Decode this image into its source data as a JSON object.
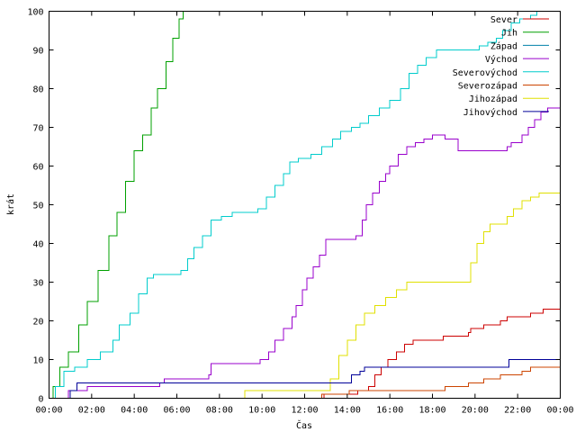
{
  "chart_data": {
    "type": "line",
    "title": "",
    "xlabel": "Čas",
    "ylabel": "krát",
    "xlim": [
      0,
      24
    ],
    "ylim": [
      0,
      100
    ],
    "grid": false,
    "legend_position": "top-right",
    "x_ticks": [
      {
        "value": 0,
        "label": "00:00"
      },
      {
        "value": 2,
        "label": "02:00"
      },
      {
        "value": 4,
        "label": "04:00"
      },
      {
        "value": 6,
        "label": "06:00"
      },
      {
        "value": 8,
        "label": "08:00"
      },
      {
        "value": 10,
        "label": "10:00"
      },
      {
        "value": 12,
        "label": "12:00"
      },
      {
        "value": 14,
        "label": "14:00"
      },
      {
        "value": 16,
        "label": "16:00"
      },
      {
        "value": 18,
        "label": "18:00"
      },
      {
        "value": 20,
        "label": "20:00"
      },
      {
        "value": 22,
        "label": "22:00"
      },
      {
        "value": 24,
        "label": "00:00"
      }
    ],
    "y_ticks": [
      {
        "value": 0,
        "label": "0"
      },
      {
        "value": 10,
        "label": "10"
      },
      {
        "value": 20,
        "label": "20"
      },
      {
        "value": 30,
        "label": "30"
      },
      {
        "value": 40,
        "label": "40"
      },
      {
        "value": 50,
        "label": "50"
      },
      {
        "value": 60,
        "label": "60"
      },
      {
        "value": 70,
        "label": "70"
      },
      {
        "value": 80,
        "label": "80"
      },
      {
        "value": 90,
        "label": "90"
      },
      {
        "value": 100,
        "label": "100"
      }
    ],
    "series": [
      {
        "name": "Sever",
        "color": "#cc0000",
        "points": [
          [
            0,
            0
          ],
          [
            12.9,
            0
          ],
          [
            12.9,
            1
          ],
          [
            13.5,
            1
          ],
          [
            14.5,
            2
          ],
          [
            15.0,
            3
          ],
          [
            15.3,
            6
          ],
          [
            15.6,
            8
          ],
          [
            15.9,
            10
          ],
          [
            16.3,
            12
          ],
          [
            16.7,
            14
          ],
          [
            17.1,
            15
          ],
          [
            18.5,
            16
          ],
          [
            19.7,
            17
          ],
          [
            19.8,
            18
          ],
          [
            20.4,
            19
          ],
          [
            21.2,
            20
          ],
          [
            21.5,
            21
          ],
          [
            22.6,
            22
          ],
          [
            23.2,
            23
          ],
          [
            24.0,
            23
          ]
        ]
      },
      {
        "name": "Jih",
        "color": "#00a000",
        "points": [
          [
            0,
            0
          ],
          [
            0.2,
            3
          ],
          [
            0.5,
            8
          ],
          [
            0.9,
            12
          ],
          [
            1.4,
            19
          ],
          [
            1.8,
            25
          ],
          [
            2.3,
            33
          ],
          [
            2.8,
            42
          ],
          [
            3.2,
            48
          ],
          [
            3.6,
            56
          ],
          [
            4.0,
            64
          ],
          [
            4.4,
            68
          ],
          [
            4.8,
            75
          ],
          [
            5.1,
            80
          ],
          [
            5.5,
            87
          ],
          [
            5.8,
            93
          ],
          [
            6.1,
            98
          ],
          [
            6.3,
            100
          ]
        ]
      },
      {
        "name": "Západ",
        "color": "#0080aa",
        "points": [
          [
            0,
            0
          ],
          [
            24.0,
            0
          ]
        ]
      },
      {
        "name": "Východ",
        "color": "#9900cc",
        "points": [
          [
            0,
            0
          ],
          [
            0.9,
            0
          ],
          [
            0.9,
            2
          ],
          [
            1.8,
            3
          ],
          [
            5.2,
            4
          ],
          [
            5.4,
            5
          ],
          [
            7.5,
            6
          ],
          [
            7.6,
            9
          ],
          [
            9.9,
            10
          ],
          [
            10.3,
            12
          ],
          [
            10.6,
            15
          ],
          [
            11.0,
            18
          ],
          [
            11.4,
            21
          ],
          [
            11.6,
            24
          ],
          [
            11.9,
            28
          ],
          [
            12.1,
            31
          ],
          [
            12.4,
            34
          ],
          [
            12.7,
            37
          ],
          [
            13.0,
            41
          ],
          [
            14.4,
            42
          ],
          [
            14.7,
            46
          ],
          [
            14.9,
            50
          ],
          [
            15.2,
            53
          ],
          [
            15.5,
            56
          ],
          [
            15.8,
            58
          ],
          [
            16.0,
            60
          ],
          [
            16.4,
            63
          ],
          [
            16.8,
            65
          ],
          [
            17.2,
            66
          ],
          [
            17.6,
            67
          ],
          [
            18.0,
            68
          ],
          [
            18.6,
            67
          ],
          [
            19.2,
            64
          ],
          [
            20.2,
            64
          ],
          [
            21.5,
            65
          ],
          [
            21.7,
            66
          ],
          [
            22.2,
            68
          ],
          [
            22.5,
            70
          ],
          [
            22.8,
            72
          ],
          [
            23.1,
            74
          ],
          [
            23.4,
            75
          ],
          [
            24.0,
            77
          ]
        ]
      },
      {
        "name": "Severovýchod",
        "color": "#00cccc",
        "points": [
          [
            0,
            0
          ],
          [
            0.3,
            3
          ],
          [
            0.7,
            7
          ],
          [
            1.2,
            8
          ],
          [
            1.8,
            10
          ],
          [
            2.4,
            12
          ],
          [
            3.0,
            15
          ],
          [
            3.3,
            19
          ],
          [
            3.8,
            22
          ],
          [
            4.2,
            27
          ],
          [
            4.6,
            31
          ],
          [
            4.9,
            32
          ],
          [
            6.2,
            33
          ],
          [
            6.5,
            36
          ],
          [
            6.8,
            39
          ],
          [
            7.2,
            42
          ],
          [
            7.6,
            46
          ],
          [
            8.1,
            47
          ],
          [
            8.6,
            48
          ],
          [
            9.8,
            49
          ],
          [
            10.2,
            52
          ],
          [
            10.6,
            55
          ],
          [
            11.0,
            58
          ],
          [
            11.3,
            61
          ],
          [
            11.7,
            62
          ],
          [
            12.3,
            63
          ],
          [
            12.8,
            65
          ],
          [
            13.3,
            67
          ],
          [
            13.7,
            69
          ],
          [
            14.2,
            70
          ],
          [
            14.6,
            71
          ],
          [
            15.0,
            73
          ],
          [
            15.5,
            75
          ],
          [
            16.0,
            77
          ],
          [
            16.5,
            80
          ],
          [
            16.9,
            84
          ],
          [
            17.3,
            86
          ],
          [
            17.7,
            88
          ],
          [
            18.2,
            90
          ],
          [
            18.8,
            90
          ],
          [
            19.5,
            90
          ],
          [
            20.0,
            90
          ],
          [
            20.2,
            91
          ],
          [
            20.6,
            92
          ],
          [
            21.0,
            93
          ],
          [
            21.3,
            95
          ],
          [
            21.7,
            97
          ],
          [
            22.1,
            98
          ],
          [
            22.6,
            99
          ],
          [
            22.9,
            100
          ]
        ]
      },
      {
        "name": "Severozápad",
        "color": "#cc4400",
        "points": [
          [
            0,
            0
          ],
          [
            12.8,
            0
          ],
          [
            12.8,
            1
          ],
          [
            14.0,
            1
          ],
          [
            14.1,
            2
          ],
          [
            18.5,
            2
          ],
          [
            18.6,
            3
          ],
          [
            19.6,
            3
          ],
          [
            19.7,
            4
          ],
          [
            20.4,
            5
          ],
          [
            21.2,
            6
          ],
          [
            22.2,
            7
          ],
          [
            22.6,
            8
          ],
          [
            24.0,
            8
          ]
        ]
      },
      {
        "name": "Jihozápad",
        "color": "#e0e000",
        "points": [
          [
            0,
            0
          ],
          [
            9.2,
            0
          ],
          [
            9.2,
            2
          ],
          [
            12.6,
            2
          ],
          [
            13.2,
            5
          ],
          [
            13.6,
            11
          ],
          [
            14.0,
            15
          ],
          [
            14.4,
            19
          ],
          [
            14.8,
            22
          ],
          [
            15.3,
            24
          ],
          [
            15.8,
            26
          ],
          [
            16.3,
            28
          ],
          [
            16.8,
            30
          ],
          [
            17.2,
            30
          ],
          [
            19.5,
            30
          ],
          [
            19.8,
            35
          ],
          [
            20.1,
            40
          ],
          [
            20.4,
            43
          ],
          [
            20.7,
            45
          ],
          [
            21.2,
            45
          ],
          [
            21.5,
            47
          ],
          [
            21.8,
            49
          ],
          [
            22.2,
            51
          ],
          [
            22.6,
            52
          ],
          [
            23.0,
            53
          ],
          [
            24.0,
            53
          ]
        ]
      },
      {
        "name": "Jihovýchod",
        "color": "#000099",
        "points": [
          [
            0,
            0
          ],
          [
            1.0,
            0
          ],
          [
            1.0,
            2
          ],
          [
            1.3,
            4
          ],
          [
            1.6,
            4
          ],
          [
            5.6,
            4
          ],
          [
            13.0,
            4
          ],
          [
            14.2,
            6
          ],
          [
            14.6,
            7
          ],
          [
            14.8,
            8
          ],
          [
            21.5,
            8
          ],
          [
            21.6,
            10
          ],
          [
            24.0,
            10
          ]
        ]
      }
    ]
  }
}
